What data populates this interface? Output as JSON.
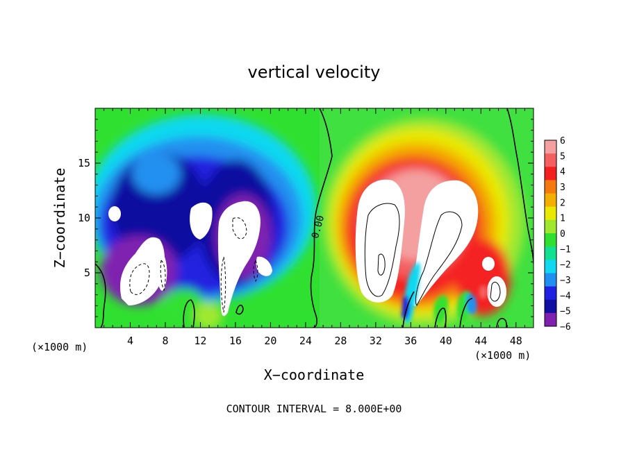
{
  "chart_data": {
    "type": "heatmap",
    "title": "vertical velocity",
    "xlabel": "X−coordinate",
    "ylabel": "Z−coordinate",
    "x_unit": "(×1000 m)",
    "x_unit_right": "(×1000 m)",
    "xlim": [
      0,
      50
    ],
    "ylim": [
      0,
      20
    ],
    "x_ticks": [
      4,
      8,
      12,
      16,
      20,
      24,
      28,
      32,
      36,
      40,
      44,
      48
    ],
    "x_tick_labels": [
      "4",
      "8",
      "12",
      "16",
      "20",
      "24",
      "28",
      "32",
      "36",
      "40",
      "44",
      "48"
    ],
    "y_ticks": [
      5,
      10,
      15
    ],
    "y_tick_labels": [
      "5",
      "10",
      "15"
    ],
    "colorbar_labels": [
      "6",
      "5",
      "4",
      "3",
      "2",
      "1",
      "0",
      "−1",
      "−2",
      "−3",
      "−4",
      "−5",
      "−6"
    ],
    "colorbar_colors": [
      "#f4a0a0",
      "#f46060",
      "#f42020",
      "#f47a10",
      "#f4b000",
      "#e8e800",
      "#a0e830",
      "#30e030",
      "#10e090",
      "#10d8f0",
      "#2090f0",
      "#2020e0",
      "#1010a0",
      "#8020b0"
    ],
    "contour_label": "0.00",
    "contour_interval_text": "CONTOUR INTERVAL = 8.000E+00"
  }
}
